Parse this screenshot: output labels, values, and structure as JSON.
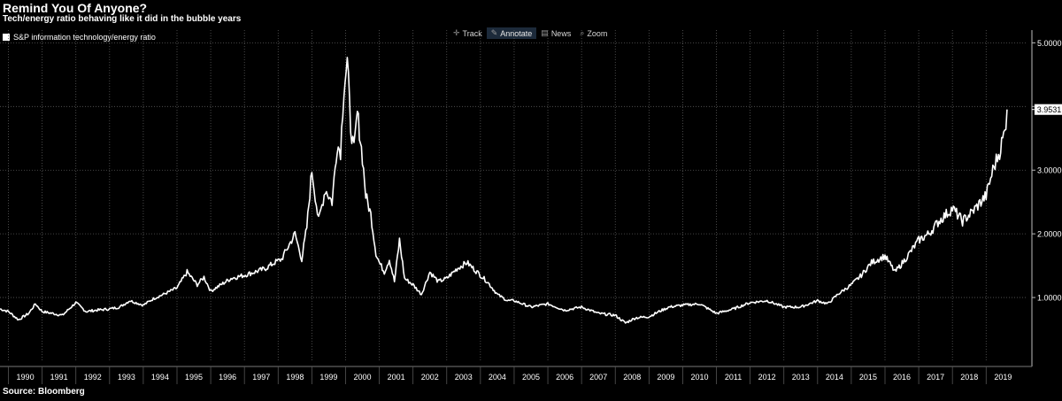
{
  "header": {
    "title": "Remind You Of Anyone?",
    "subtitle": "Tech/energy ratio behaving like it did in the bubble years"
  },
  "toolbar": {
    "items": [
      {
        "label": "Track",
        "icon": "crosshair-icon"
      },
      {
        "label": "Annotate",
        "icon": "pencil-icon"
      },
      {
        "label": "News",
        "icon": "news-icon"
      },
      {
        "label": "Zoom",
        "icon": "magnifier-icon"
      }
    ]
  },
  "footer": {
    "source": "Source:  Bloomberg"
  },
  "colors": {
    "background": "#000000",
    "line": "#ffffff",
    "grid": "#5a5a5a"
  },
  "chart_data": {
    "type": "line",
    "title": "Remind You Of Anyone?",
    "subtitle": "Tech/energy ratio behaving like it did in the bubble years",
    "legend": [
      "S&P information technology/energy ratio"
    ],
    "legend_position": "top-left",
    "grid": true,
    "xlim": [
      1989.75,
      2020.2
    ],
    "ylim": [
      0,
      5.2
    ],
    "y_ticks": [
      1,
      2,
      3,
      4,
      5
    ],
    "y_tick_labels": [
      "1.0000",
      "2.0000",
      "3.0000",
      "",
      "5.0000"
    ],
    "x_tick_labels": [
      "1990",
      "1991",
      "1992",
      "1993",
      "1994",
      "1995",
      "1996",
      "1997",
      "1998",
      "1999",
      "2000",
      "2001",
      "2002",
      "2003",
      "2004",
      "2005",
      "2006",
      "2007",
      "2008",
      "2009",
      "2010",
      "2011",
      "2012",
      "2013",
      "2014",
      "2015",
      "2016",
      "2017",
      "2018",
      "2019"
    ],
    "last_value_label": "3.9531",
    "last_value": 3.9531,
    "series": [
      {
        "name": "S&P information technology/energy ratio",
        "x": [
          1989.75,
          1990.0,
          1990.3,
          1990.6,
          1990.8,
          1991.0,
          1991.3,
          1991.6,
          1992.0,
          1992.3,
          1992.6,
          1993.0,
          1993.3,
          1993.6,
          1994.0,
          1994.3,
          1994.6,
          1995.0,
          1995.3,
          1995.6,
          1995.8,
          1996.0,
          1996.3,
          1996.6,
          1997.0,
          1997.3,
          1997.6,
          1997.9,
          1998.1,
          1998.3,
          1998.5,
          1998.7,
          1998.85,
          1999.0,
          1999.2,
          1999.4,
          1999.6,
          1999.75,
          1999.85,
          1999.95,
          2000.05,
          2000.15,
          2000.25,
          2000.35,
          2000.5,
          2000.6,
          2000.75,
          2000.9,
          2001.0,
          2001.15,
          2001.3,
          2001.45,
          2001.6,
          2001.75,
          2002.0,
          2002.25,
          2002.5,
          2002.75,
          2003.0,
          2003.3,
          2003.6,
          2003.9,
          2004.2,
          2004.5,
          2004.8,
          2005.0,
          2005.5,
          2006.0,
          2006.5,
          2007.0,
          2007.5,
          2008.0,
          2008.3,
          2008.6,
          2009.0,
          2009.3,
          2009.6,
          2010.0,
          2010.5,
          2011.0,
          2011.5,
          2012.0,
          2012.5,
          2013.0,
          2013.5,
          2014.0,
          2014.3,
          2014.6,
          2015.0,
          2015.3,
          2015.6,
          2016.0,
          2016.3,
          2016.6,
          2017.0,
          2017.3,
          2017.6,
          2018.0,
          2018.3,
          2018.6,
          2019.0,
          2019.2,
          2019.4,
          2019.55,
          2019.62
        ],
        "y": [
          0.82,
          0.78,
          0.65,
          0.75,
          0.9,
          0.78,
          0.75,
          0.72,
          0.92,
          0.78,
          0.8,
          0.82,
          0.85,
          0.95,
          0.88,
          0.98,
          1.05,
          1.15,
          1.4,
          1.2,
          1.32,
          1.1,
          1.2,
          1.3,
          1.35,
          1.4,
          1.45,
          1.55,
          1.6,
          1.8,
          2.0,
          1.6,
          2.1,
          3.0,
          2.2,
          2.7,
          2.5,
          3.4,
          3.3,
          4.3,
          4.7,
          3.7,
          3.3,
          3.9,
          3.2,
          2.6,
          2.3,
          1.7,
          1.55,
          1.4,
          1.6,
          1.25,
          1.9,
          1.3,
          1.2,
          1.05,
          1.4,
          1.25,
          1.3,
          1.45,
          1.55,
          1.4,
          1.25,
          1.05,
          0.95,
          0.95,
          0.85,
          0.9,
          0.8,
          0.85,
          0.75,
          0.72,
          0.6,
          0.68,
          0.7,
          0.78,
          0.85,
          0.88,
          0.9,
          0.75,
          0.82,
          0.92,
          0.95,
          0.85,
          0.85,
          0.95,
          0.9,
          1.05,
          1.2,
          1.35,
          1.55,
          1.65,
          1.4,
          1.6,
          1.9,
          2.0,
          2.2,
          2.4,
          2.2,
          2.35,
          2.6,
          3.0,
          3.3,
          3.6,
          3.9531
        ]
      }
    ]
  }
}
